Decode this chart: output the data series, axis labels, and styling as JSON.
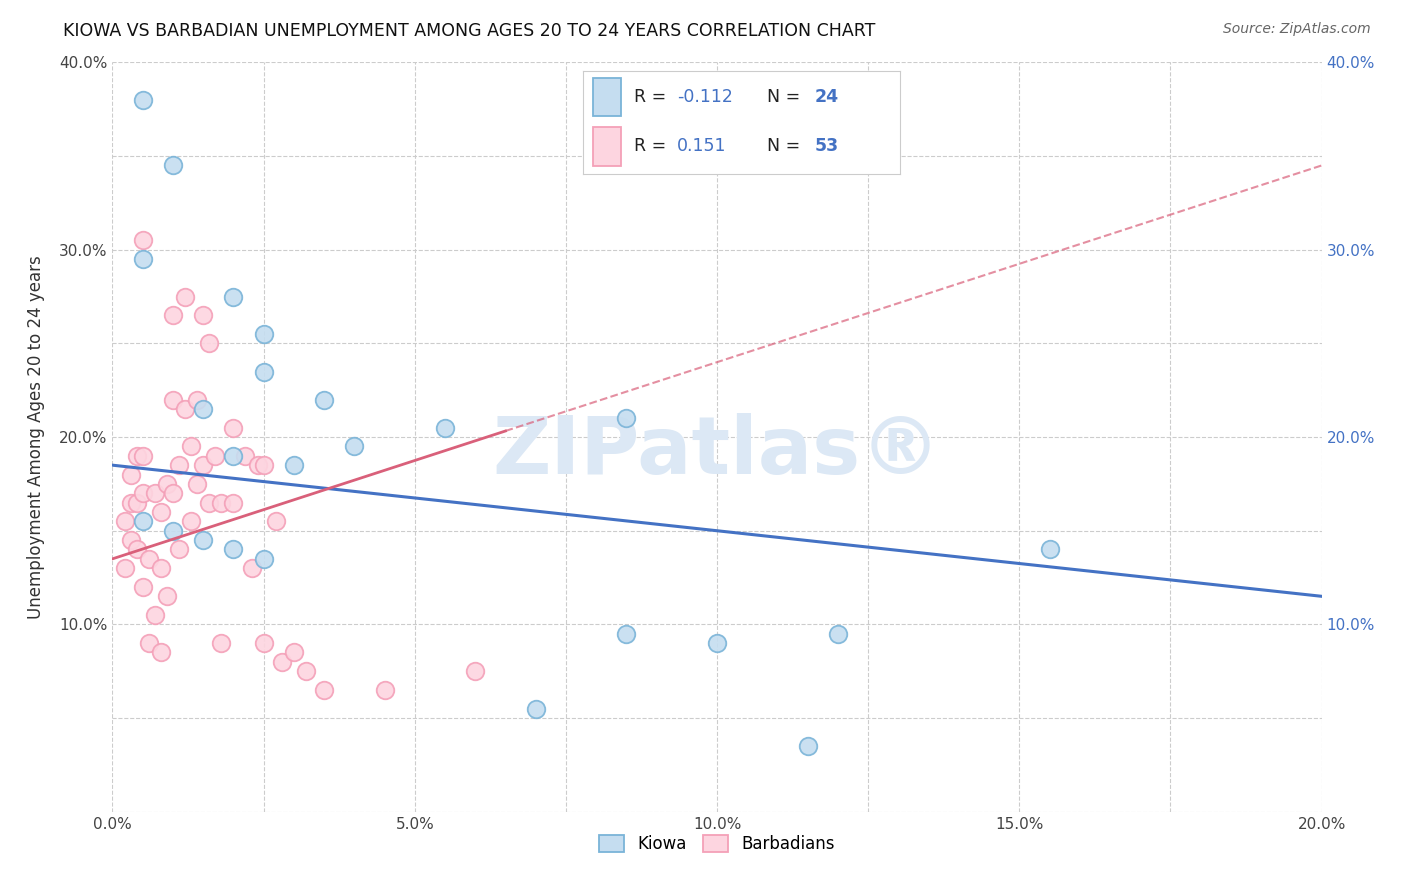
{
  "title": "KIOWA VS BARBADIAN UNEMPLOYMENT AMONG AGES 20 TO 24 YEARS CORRELATION CHART",
  "source": "Source: ZipAtlas.com",
  "ylabel": "Unemployment Among Ages 20 to 24 years",
  "xlim": [
    0.0,
    0.2
  ],
  "ylim": [
    0.0,
    0.4
  ],
  "xticks": [
    0.0,
    0.025,
    0.05,
    0.075,
    0.1,
    0.125,
    0.15,
    0.175,
    0.2
  ],
  "xticklabels": [
    "0.0%",
    "",
    "5.0%",
    "",
    "10.0%",
    "",
    "15.0%",
    "",
    "20.0%"
  ],
  "yticks": [
    0.0,
    0.05,
    0.1,
    0.15,
    0.2,
    0.25,
    0.3,
    0.35,
    0.4
  ],
  "yticklabels": [
    "",
    "",
    "10.0%",
    "",
    "20.0%",
    "",
    "30.0%",
    "",
    "40.0%"
  ],
  "kiowa_x": [
    0.005,
    0.01,
    0.005,
    0.02,
    0.025,
    0.025,
    0.035,
    0.015,
    0.02,
    0.03,
    0.04,
    0.055,
    0.005,
    0.01,
    0.015,
    0.02,
    0.025,
    0.085,
    0.12,
    0.155,
    0.085,
    0.1,
    0.07,
    0.115
  ],
  "kiowa_y": [
    0.38,
    0.345,
    0.295,
    0.275,
    0.255,
    0.235,
    0.22,
    0.215,
    0.19,
    0.185,
    0.195,
    0.205,
    0.155,
    0.15,
    0.145,
    0.14,
    0.135,
    0.21,
    0.095,
    0.14,
    0.095,
    0.09,
    0.055,
    0.035
  ],
  "barbadian_x": [
    0.002,
    0.002,
    0.003,
    0.003,
    0.003,
    0.004,
    0.004,
    0.004,
    0.005,
    0.005,
    0.005,
    0.005,
    0.006,
    0.006,
    0.007,
    0.007,
    0.008,
    0.008,
    0.008,
    0.009,
    0.009,
    0.01,
    0.01,
    0.01,
    0.011,
    0.011,
    0.012,
    0.012,
    0.013,
    0.013,
    0.014,
    0.014,
    0.015,
    0.015,
    0.016,
    0.016,
    0.017,
    0.018,
    0.018,
    0.02,
    0.02,
    0.022,
    0.023,
    0.024,
    0.025,
    0.025,
    0.027,
    0.028,
    0.03,
    0.032,
    0.035,
    0.045,
    0.06
  ],
  "barbadian_y": [
    0.155,
    0.13,
    0.18,
    0.165,
    0.145,
    0.19,
    0.165,
    0.14,
    0.305,
    0.19,
    0.17,
    0.12,
    0.135,
    0.09,
    0.17,
    0.105,
    0.16,
    0.13,
    0.085,
    0.175,
    0.115,
    0.265,
    0.22,
    0.17,
    0.185,
    0.14,
    0.275,
    0.215,
    0.195,
    0.155,
    0.22,
    0.175,
    0.265,
    0.185,
    0.25,
    0.165,
    0.19,
    0.165,
    0.09,
    0.205,
    0.165,
    0.19,
    0.13,
    0.185,
    0.185,
    0.09,
    0.155,
    0.08,
    0.085,
    0.075,
    0.065,
    0.065,
    0.075
  ],
  "kiowa_color": "#7ab4d8",
  "kiowa_face": "#c5ddf0",
  "barbadian_color": "#f4a0b8",
  "barbadian_face": "#fdd5e0",
  "trend_blue": "#4472c4",
  "trend_pink": "#d9607a",
  "watermark": "ZIPatlas",
  "watermark_sym": "®",
  "watermark_color": "#dce8f5",
  "background_color": "#ffffff",
  "grid_color": "#cccccc",
  "kiowa_R": -0.112,
  "kiowa_N": 24,
  "barbadian_R": 0.151,
  "barbadian_N": 53,
  "trend_blue_intercept": 0.185,
  "trend_blue_slope": -0.35,
  "trend_pink_intercept": 0.135,
  "trend_pink_slope": 1.05
}
